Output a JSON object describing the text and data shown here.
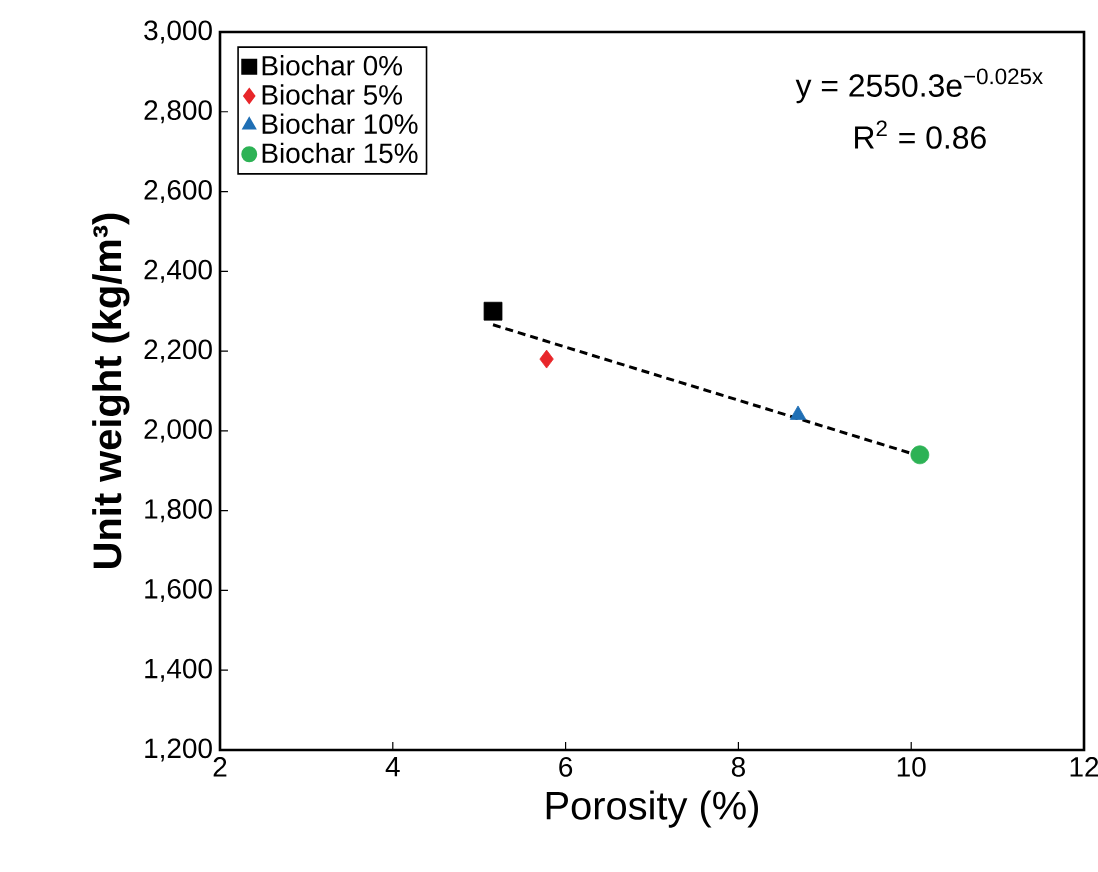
{
  "chart_data": {
    "type": "scatter",
    "xlabel": "Porosity (%)",
    "ylabel": "Unit weight (kg/m³)",
    "xlim": [
      2,
      12
    ],
    "xticks": [
      2,
      4,
      6,
      8,
      10,
      12
    ],
    "ylim": [
      1200,
      3000
    ],
    "yticks": [
      {
        "value": 1200,
        "label": "1,200"
      },
      {
        "value": 1400,
        "label": "1,400"
      },
      {
        "value": 1600,
        "label": "1,600"
      },
      {
        "value": 1800,
        "label": "1,800"
      },
      {
        "value": 2000,
        "label": "2,000"
      },
      {
        "value": 2200,
        "label": "2,200"
      },
      {
        "value": 2400,
        "label": "2,400"
      },
      {
        "value": 2600,
        "label": "2,600"
      },
      {
        "value": 2800,
        "label": "2,800"
      },
      {
        "value": 3000,
        "label": "3,000"
      }
    ],
    "grid": false,
    "legend": "top left",
    "series": [
      {
        "name": "Biochar 0%",
        "color": "#000000",
        "marker": "square",
        "x": [
          5.16
        ],
        "values": [
          2300
        ]
      },
      {
        "name": "Biochar 5%",
        "color": "#e8262a",
        "marker": "diamond",
        "x": [
          5.78
        ],
        "values": [
          2180
        ]
      },
      {
        "name": "Biochar 10%",
        "color": "#1f6fb5",
        "marker": "triangle",
        "x": [
          8.69
        ],
        "values": [
          2040
        ]
      },
      {
        "name": "Biochar 15%",
        "color": "#2db255",
        "marker": "circle",
        "x": [
          10.1
        ],
        "values": [
          1940
        ]
      },
      {
        "type": "line",
        "color": "#000000",
        "marker": "none",
        "line_style": "dashed",
        "x": [
          5.16,
          10.1
        ],
        "values": [
          2266,
          1937
        ]
      }
    ],
    "annotations": [
      "y = 2550.3e$^{−0.025x}$",
      "R$^{2}$ = 0.86"
    ]
  }
}
